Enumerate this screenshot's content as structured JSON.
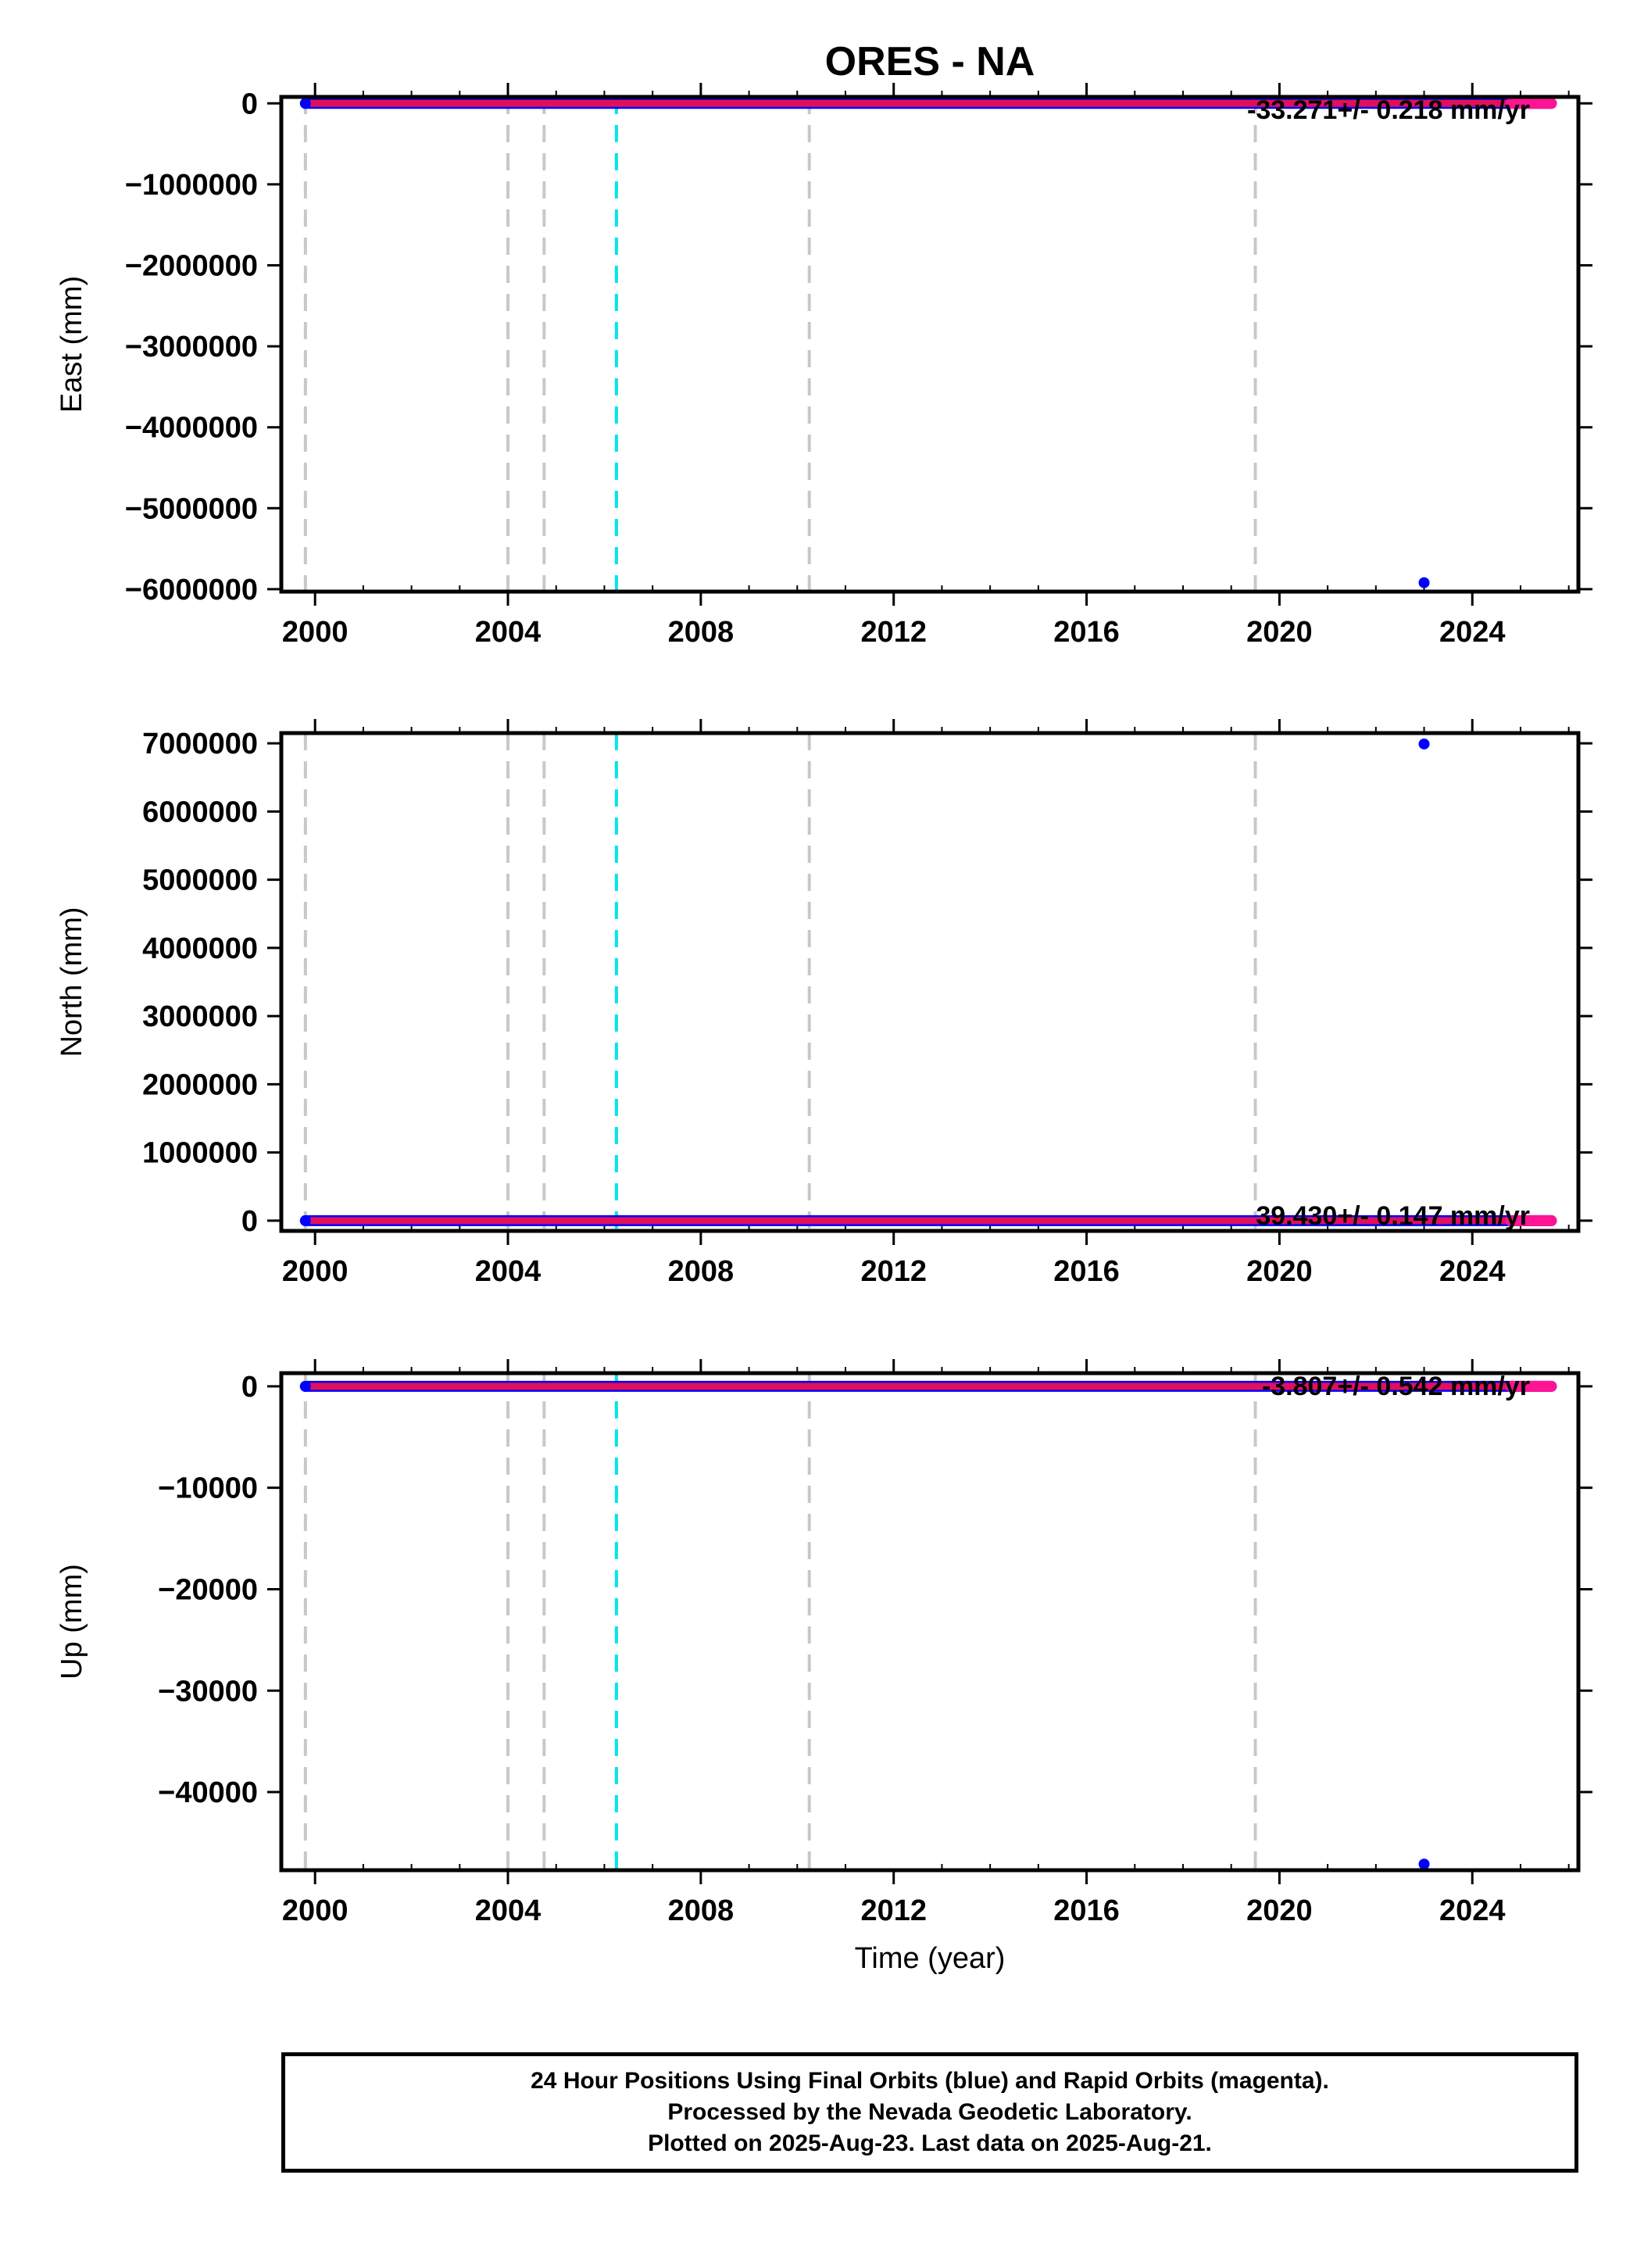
{
  "chart_data": {
    "type": "scatter",
    "title": "ORES - NA",
    "xlabel": "Time (year)",
    "xlim": [
      1999.3,
      2026.2
    ],
    "xticks": [
      2000,
      2004,
      2008,
      2012,
      2016,
      2020,
      2024
    ],
    "event_lines": [
      {
        "x": 1999.8,
        "color": "#c8c8c8"
      },
      {
        "x": 2004.0,
        "color": "#c8c8c8"
      },
      {
        "x": 2004.75,
        "color": "#c8c8c8"
      },
      {
        "x": 2006.25,
        "color": "#00e5ee"
      },
      {
        "x": 2010.25,
        "color": "#c8c8c8"
      },
      {
        "x": 2019.5,
        "color": "#c8c8c8"
      }
    ],
    "series_colors": {
      "final": "#0000ff",
      "rapid": "#ff1493",
      "overlap": "#e0105a"
    },
    "time_span": [
      1999.8,
      2025.64
    ],
    "rapid_start": 2024.8,
    "panels": [
      {
        "ylabel": "East (mm)",
        "ylim": [
          -6030000,
          80000
        ],
        "yticks": [
          0,
          -1000000,
          -2000000,
          -3000000,
          -4000000,
          -5000000,
          -6000000
        ],
        "ytick_labels": [
          "0",
          "−1000000",
          "−2000000",
          "−3000000",
          "−4000000",
          "−5000000",
          "−6000000"
        ],
        "rate": "-33.271+/- 0.218 mm/yr",
        "rate_position": "top-right",
        "baseline": 0,
        "outliers": [
          {
            "x": 2023.0,
            "y": -5920000
          }
        ]
      },
      {
        "ylabel": "North (mm)",
        "ylim": [
          -150000,
          7150000
        ],
        "yticks": [
          0,
          1000000,
          2000000,
          3000000,
          4000000,
          5000000,
          6000000,
          7000000
        ],
        "ytick_labels": [
          "0",
          "1000000",
          "2000000",
          "3000000",
          "4000000",
          "5000000",
          "6000000",
          "7000000"
        ],
        "rate": "39.430+/- 0.147 mm/yr",
        "rate_position": "bottom-right",
        "baseline": 0,
        "outliers": [
          {
            "x": 2023.0,
            "y": 6990000
          }
        ]
      },
      {
        "ylabel": "Up (mm)",
        "ylim": [
          -47700,
          1300
        ],
        "yticks": [
          0,
          -10000,
          -20000,
          -30000,
          -40000
        ],
        "ytick_labels": [
          "0",
          "−10000",
          "−20000",
          "−30000",
          "−40000"
        ],
        "rate": "-3.807+/- 0.542 mm/yr",
        "rate_position": "top-right",
        "baseline": 0,
        "outliers": [
          {
            "x": 2023.0,
            "y": -47100
          }
        ]
      }
    ]
  },
  "footer": {
    "line1": "24 Hour Positions Using Final Orbits (blue) and Rapid Orbits (magenta).",
    "line2": "Processed by the Nevada Geodetic Laboratory.",
    "line3": "Plotted on 2025-Aug-23. Last data on 2025-Aug-21."
  }
}
